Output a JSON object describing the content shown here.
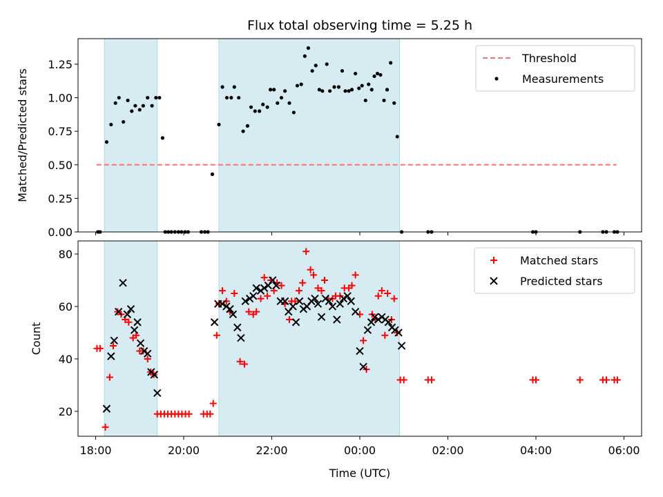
{
  "chart_data": [
    {
      "type": "scatter",
      "title": "Flux total observing time = 5.25 h",
      "ylabel": "Matched/Predicted stars",
      "xlabel": "",
      "x_unit": "hours since 00:00 UTC (negative = previous evening)",
      "xlim": [
        -6.4,
        6.4
      ],
      "ylim": [
        0,
        1.44
      ],
      "yticks": [
        0,
        0.25,
        0.5,
        0.75,
        1.0,
        1.25
      ],
      "ytick_labels": [
        "0.00",
        "0.25",
        "0.50",
        "0.75",
        "1.00",
        "1.25"
      ],
      "legend": {
        "location": "top-right",
        "entries": [
          "Threshold",
          "Measurements"
        ]
      },
      "shaded_intervals": [
        [
          -5.8,
          -4.6
        ],
        [
          -3.2,
          0.9
        ]
      ],
      "threshold": {
        "name": "Threshold",
        "value": 0.5,
        "x_range": [
          -5.98,
          5.83
        ],
        "color": "#ff7070"
      },
      "series": [
        {
          "name": "Measurements",
          "color": "#000000",
          "points": [
            [
              -5.95,
              0
            ],
            [
              -5.9,
              0
            ],
            [
              -5.75,
              0.67
            ],
            [
              -5.65,
              0.8
            ],
            [
              -5.55,
              0.96
            ],
            [
              -5.47,
              1.0
            ],
            [
              -5.37,
              0.82
            ],
            [
              -5.27,
              0.98
            ],
            [
              -5.18,
              0.9
            ],
            [
              -5.1,
              0.94
            ],
            [
              -5.0,
              0.91
            ],
            [
              -4.92,
              0.94
            ],
            [
              -4.82,
              1.0
            ],
            [
              -4.72,
              0.94
            ],
            [
              -4.63,
              1.0
            ],
            [
              -4.55,
              1.0
            ],
            [
              -4.48,
              0.7
            ],
            [
              -4.42,
              0
            ],
            [
              -4.35,
              0
            ],
            [
              -4.28,
              0
            ],
            [
              -4.2,
              0
            ],
            [
              -4.12,
              0
            ],
            [
              -4.05,
              0
            ],
            [
              -3.97,
              0
            ],
            [
              -3.9,
              0
            ],
            [
              -3.6,
              0
            ],
            [
              -3.52,
              0
            ],
            [
              -3.45,
              0
            ],
            [
              -3.35,
              0.43
            ],
            [
              -3.2,
              0.8
            ],
            [
              -3.12,
              1.08
            ],
            [
              -3.02,
              1.0
            ],
            [
              -2.92,
              1.0
            ],
            [
              -2.85,
              1.08
            ],
            [
              -2.75,
              1.0
            ],
            [
              -2.65,
              0.75
            ],
            [
              -2.55,
              0.79
            ],
            [
              -2.47,
              0.93
            ],
            [
              -2.38,
              0.9
            ],
            [
              -2.28,
              0.9
            ],
            [
              -2.2,
              0.95
            ],
            [
              -2.1,
              0.93
            ],
            [
              -2.03,
              1.06
            ],
            [
              -1.95,
              1.06
            ],
            [
              -1.87,
              0.96
            ],
            [
              -1.78,
              1.0
            ],
            [
              -1.7,
              1.05
            ],
            [
              -1.6,
              0.96
            ],
            [
              -1.5,
              0.89
            ],
            [
              -1.42,
              1.09
            ],
            [
              -1.33,
              1.1
            ],
            [
              -1.25,
              1.31
            ],
            [
              -1.17,
              1.37
            ],
            [
              -1.08,
              1.2
            ],
            [
              -1.0,
              1.24
            ],
            [
              -0.92,
              1.06
            ],
            [
              -0.85,
              1.05
            ],
            [
              -0.75,
              1.25
            ],
            [
              -0.68,
              1.05
            ],
            [
              -0.58,
              1.08
            ],
            [
              -0.48,
              1.08
            ],
            [
              -0.4,
              1.2
            ],
            [
              -0.33,
              1.05
            ],
            [
              -0.25,
              1.05
            ],
            [
              -0.18,
              1.06
            ],
            [
              -0.1,
              1.18
            ],
            [
              -0.02,
              1.07
            ],
            [
              0.05,
              1.09
            ],
            [
              0.13,
              0.98
            ],
            [
              0.2,
              1.1
            ],
            [
              0.27,
              1.06
            ],
            [
              0.33,
              1.16
            ],
            [
              0.4,
              1.18
            ],
            [
              0.47,
              1.17
            ],
            [
              0.55,
              0.98
            ],
            [
              0.62,
              1.06
            ],
            [
              0.7,
              1.26
            ],
            [
              0.78,
              0.96
            ],
            [
              0.85,
              0.71
            ],
            [
              0.95,
              0
            ],
            [
              1.55,
              0
            ],
            [
              1.63,
              0
            ],
            [
              3.93,
              0
            ],
            [
              4.0,
              0
            ],
            [
              5.0,
              0
            ],
            [
              5.52,
              0
            ],
            [
              5.6,
              0
            ],
            [
              5.78,
              0
            ],
            [
              5.85,
              0
            ]
          ]
        }
      ]
    },
    {
      "type": "scatter",
      "title": "",
      "ylabel": "Count",
      "xlabel": "Time (UTC)",
      "x_unit": "hours since 00:00 UTC (negative = previous evening)",
      "xlim": [
        -6.4,
        6.4
      ],
      "ylim": [
        10.5,
        85
      ],
      "yticks": [
        20,
        40,
        60,
        80
      ],
      "ytick_labels": [
        "20",
        "40",
        "60",
        "80"
      ],
      "xticks": [
        -6,
        -4,
        -2,
        0,
        2,
        4,
        6
      ],
      "xtick_labels": [
        "18:00",
        "20:00",
        "22:00",
        "00:00",
        "02:00",
        "04:00",
        "06:00"
      ],
      "legend": {
        "location": "top-right",
        "entries": [
          "Matched stars",
          "Predicted stars"
        ]
      },
      "shaded_intervals": [
        [
          -5.8,
          -4.6
        ],
        [
          -3.2,
          0.9
        ]
      ],
      "series": [
        {
          "name": "Matched stars",
          "marker": "plus",
          "color": "#ff0000",
          "points": [
            [
              -5.97,
              44
            ],
            [
              -5.9,
              44
            ],
            [
              -5.78,
              14
            ],
            [
              -5.68,
              33
            ],
            [
              -5.6,
              45
            ],
            [
              -5.5,
              58
            ],
            [
              -5.42,
              57
            ],
            [
              -5.33,
              55
            ],
            [
              -5.25,
              54
            ],
            [
              -5.15,
              48
            ],
            [
              -5.08,
              49
            ],
            [
              -5.0,
              43
            ],
            [
              -4.92,
              43
            ],
            [
              -4.82,
              40
            ],
            [
              -4.75,
              35
            ],
            [
              -4.68,
              34
            ],
            [
              -4.6,
              19
            ],
            [
              -4.52,
              19
            ],
            [
              -4.44,
              19
            ],
            [
              -4.36,
              19
            ],
            [
              -4.28,
              19
            ],
            [
              -4.2,
              19
            ],
            [
              -4.12,
              19
            ],
            [
              -4.04,
              19
            ],
            [
              -3.96,
              19
            ],
            [
              -3.88,
              19
            ],
            [
              -3.55,
              19
            ],
            [
              -3.47,
              19
            ],
            [
              -3.4,
              19
            ],
            [
              -3.33,
              23
            ],
            [
              -3.25,
              49
            ],
            [
              -3.2,
              61
            ],
            [
              -3.12,
              66
            ],
            [
              -3.03,
              62
            ],
            [
              -2.95,
              58
            ],
            [
              -2.85,
              65
            ],
            [
              -2.72,
              39
            ],
            [
              -2.62,
              38
            ],
            [
              -2.52,
              58
            ],
            [
              -2.42,
              57
            ],
            [
              -2.35,
              58
            ],
            [
              -2.25,
              63
            ],
            [
              -2.17,
              71
            ],
            [
              -2.1,
              64
            ],
            [
              -2.02,
              70
            ],
            [
              -1.95,
              66
            ],
            [
              -1.88,
              69
            ],
            [
              -1.78,
              68
            ],
            [
              -1.7,
              61
            ],
            [
              -1.6,
              55
            ],
            [
              -1.55,
              62
            ],
            [
              -1.47,
              62
            ],
            [
              -1.38,
              66
            ],
            [
              -1.3,
              69
            ],
            [
              -1.22,
              81
            ],
            [
              -1.12,
              74
            ],
            [
              -1.05,
              72
            ],
            [
              -0.95,
              67
            ],
            [
              -0.87,
              66
            ],
            [
              -0.8,
              70
            ],
            [
              -0.72,
              63
            ],
            [
              -0.62,
              63
            ],
            [
              -0.55,
              64
            ],
            [
              -0.45,
              64
            ],
            [
              -0.35,
              67
            ],
            [
              -0.25,
              67
            ],
            [
              -0.18,
              68
            ],
            [
              -0.1,
              72
            ],
            [
              0.0,
              57
            ],
            [
              0.08,
              47
            ],
            [
              0.15,
              36
            ],
            [
              0.28,
              57
            ],
            [
              0.35,
              55
            ],
            [
              0.42,
              64
            ],
            [
              0.5,
              66
            ],
            [
              0.57,
              49
            ],
            [
              0.63,
              65
            ],
            [
              0.72,
              55
            ],
            [
              0.78,
              63
            ],
            [
              0.85,
              50
            ],
            [
              0.92,
              32
            ],
            [
              1.0,
              32
            ],
            [
              1.55,
              32
            ],
            [
              1.63,
              32
            ],
            [
              3.93,
              32
            ],
            [
              4.0,
              32
            ],
            [
              5.0,
              32
            ],
            [
              5.52,
              32
            ],
            [
              5.6,
              32
            ],
            [
              5.78,
              32
            ],
            [
              5.85,
              32
            ]
          ]
        },
        {
          "name": "Predicted stars",
          "marker": "x",
          "color": "#000000",
          "points": [
            [
              -5.75,
              21
            ],
            [
              -5.65,
              41
            ],
            [
              -5.58,
              47
            ],
            [
              -5.48,
              58
            ],
            [
              -5.38,
              69
            ],
            [
              -5.28,
              57
            ],
            [
              -5.2,
              59
            ],
            [
              -5.12,
              51
            ],
            [
              -5.05,
              54
            ],
            [
              -4.98,
              46
            ],
            [
              -4.9,
              43
            ],
            [
              -4.82,
              42
            ],
            [
              -4.74,
              35
            ],
            [
              -4.67,
              34
            ],
            [
              -4.6,
              27
            ],
            [
              -3.3,
              54
            ],
            [
              -3.22,
              61
            ],
            [
              -3.12,
              61
            ],
            [
              -3.03,
              60
            ],
            [
              -2.95,
              59
            ],
            [
              -2.88,
              57
            ],
            [
              -2.78,
              52
            ],
            [
              -2.7,
              48
            ],
            [
              -2.6,
              62
            ],
            [
              -2.5,
              63
            ],
            [
              -2.42,
              64
            ],
            [
              -2.35,
              67
            ],
            [
              -2.25,
              66
            ],
            [
              -2.17,
              67
            ],
            [
              -2.08,
              68
            ],
            [
              -1.98,
              70
            ],
            [
              -1.9,
              68
            ],
            [
              -1.8,
              62
            ],
            [
              -1.7,
              62
            ],
            [
              -1.62,
              58
            ],
            [
              -1.52,
              60
            ],
            [
              -1.45,
              54
            ],
            [
              -1.37,
              62
            ],
            [
              -1.28,
              59
            ],
            [
              -1.2,
              60
            ],
            [
              -1.1,
              62
            ],
            [
              -1.02,
              63
            ],
            [
              -0.95,
              61
            ],
            [
              -0.87,
              56
            ],
            [
              -0.78,
              63
            ],
            [
              -0.7,
              62
            ],
            [
              -0.62,
              60
            ],
            [
              -0.52,
              55
            ],
            [
              -0.45,
              61
            ],
            [
              -0.37,
              63
            ],
            [
              -0.28,
              64
            ],
            [
              -0.2,
              62
            ],
            [
              -0.1,
              58
            ],
            [
              0.0,
              43
            ],
            [
              0.08,
              37
            ],
            [
              0.18,
              51
            ],
            [
              0.26,
              54
            ],
            [
              0.34,
              56
            ],
            [
              0.42,
              55
            ],
            [
              0.5,
              56
            ],
            [
              0.58,
              55
            ],
            [
              0.65,
              54
            ],
            [
              0.73,
              52
            ],
            [
              0.8,
              51
            ],
            [
              0.88,
              50
            ],
            [
              0.95,
              45
            ]
          ]
        }
      ]
    }
  ]
}
